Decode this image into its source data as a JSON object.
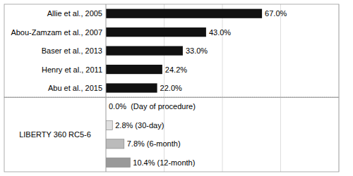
{
  "chart_data": [
    {
      "type": "bar",
      "orientation": "horizontal",
      "categories": [
        "Allie et al., 2005",
        "Abou-Zamzam et al., 2007",
        "Baser et al., 2013",
        "Henry et al., 2011",
        "Abu et al., 2015"
      ],
      "values": [
        67.0,
        43.0,
        33.0,
        24.2,
        22.0
      ],
      "value_labels": [
        "67.0%",
        "43.0%",
        "33.0%",
        "24.2%",
        "22.0%"
      ],
      "data_labels": true,
      "color": "#111111",
      "xlim": [
        0,
        100
      ],
      "xticks": [
        0,
        25,
        50,
        75,
        100
      ],
      "grid": true,
      "tick_labels": "y"
    },
    {
      "type": "bar",
      "orientation": "horizontal",
      "title": "LIBERTY 360 RC5-6",
      "values": [
        0.0,
        2.8,
        7.8,
        10.4
      ],
      "value_labels": [
        "0.0%  (Day of procedure)",
        "2.8% (30-day)",
        "7.8% (6-month)",
        "10.4% (12-month)"
      ],
      "data_labels": true,
      "colors": [
        "#ffffff",
        "#e0e0e0",
        "#bbbbbb",
        "#999999"
      ],
      "xlim": [
        0,
        100
      ],
      "xticks": [
        0,
        25,
        50,
        75,
        100
      ],
      "grid": true,
      "tick_labels": false
    }
  ]
}
